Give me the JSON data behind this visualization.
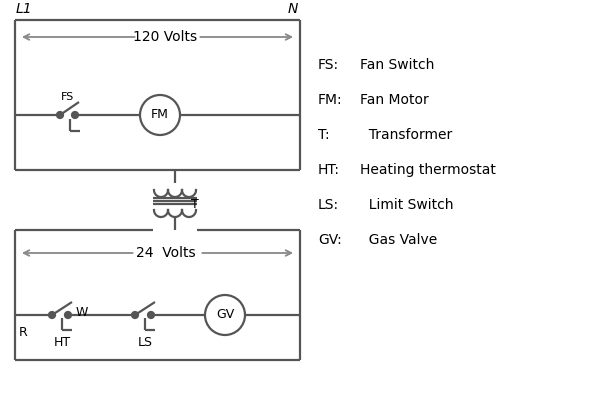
{
  "background_color": "#ffffff",
  "line_color": "#555555",
  "arrow_color": "#888888",
  "line_width": 1.6,
  "legend_items": [
    [
      "FS:",
      "Fan Switch"
    ],
    [
      "FM:",
      "Fan Motor"
    ],
    [
      "T:",
      "  Transformer"
    ],
    [
      "HT:",
      "Heating thermostat"
    ],
    [
      "LS:",
      "  Limit Switch"
    ],
    [
      "GV:",
      "  Gas Valve"
    ]
  ],
  "L1_label": "L1",
  "N_label": "N",
  "volts120_label": "120 Volts",
  "volts24_label": "24  Volts",
  "T_label": "T",
  "R_label": "R",
  "W_label": "W",
  "FS_label": "FS",
  "FM_label": "FM",
  "HT_label": "HT",
  "LS_label": "LS",
  "GV_label": "GV"
}
